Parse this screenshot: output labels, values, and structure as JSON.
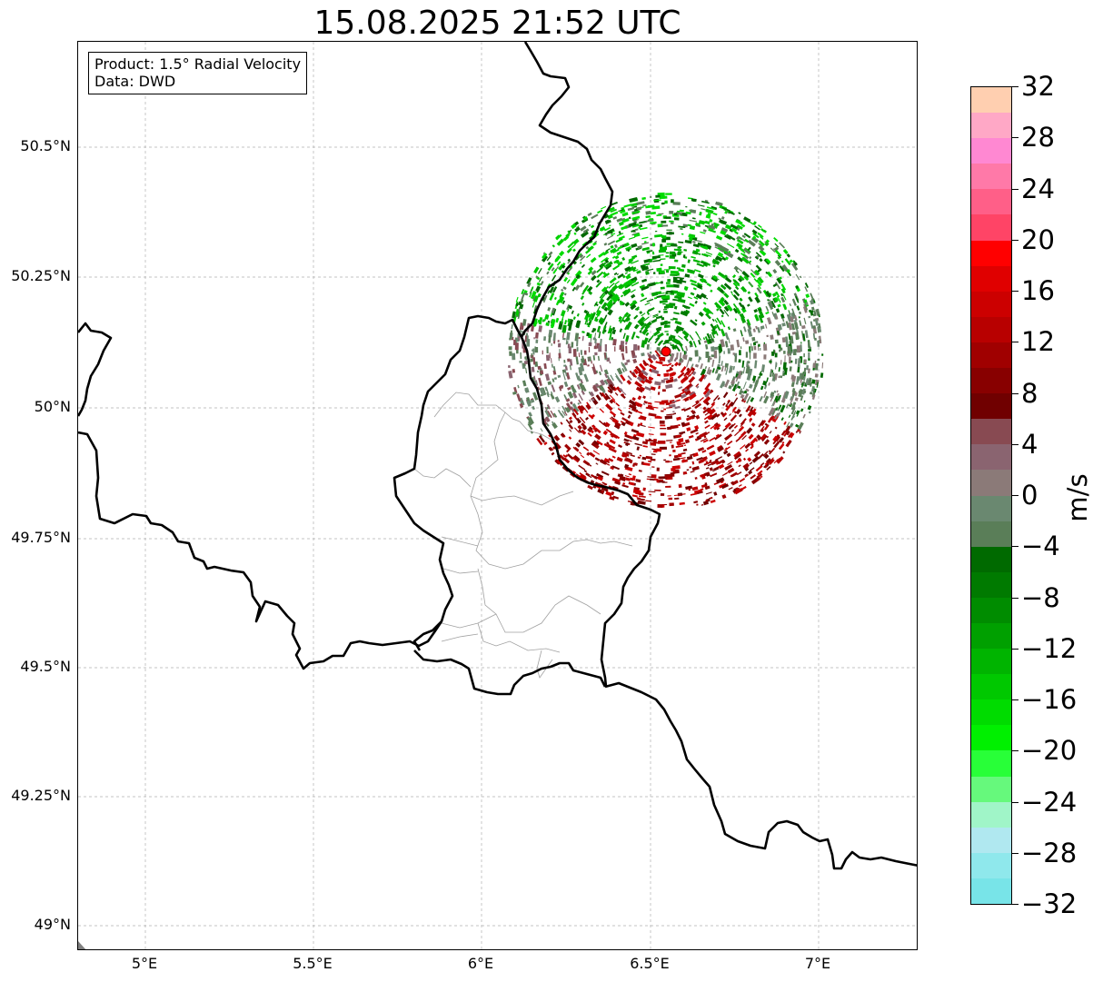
{
  "title": "15.08.2025 21:52 UTC",
  "info": {
    "product": "Product: 1.5° Radial Velocity",
    "data": "Data: DWD"
  },
  "axes": {
    "lat_ticks": [
      "50.5°N",
      "50.25°N",
      "50°N",
      "49.75°N",
      "49.5°N",
      "49.25°N",
      "49°N"
    ],
    "lon_ticks": [
      "5°E",
      "5.5°E",
      "6°E",
      "6.5°E",
      "7°E"
    ],
    "lon_range": [
      4.8,
      7.3
    ],
    "lat_range": [
      48.95,
      50.7
    ],
    "grid": true
  },
  "radar": {
    "site_lon": 6.55,
    "site_lat": 50.11,
    "site_color": "#ff0000"
  },
  "colorbar": {
    "unit": "m/s",
    "range": [
      -32,
      32
    ],
    "tick_labels": [
      "32",
      "28",
      "24",
      "20",
      "16",
      "12",
      "8",
      "4",
      "0",
      "−4",
      "−8",
      "−12",
      "−16",
      "−20",
      "−24",
      "−28",
      "−32"
    ],
    "colors_top_to_bottom": [
      "#ffcfb0",
      "#ffa8c6",
      "#ff88d2",
      "#ff79a8",
      "#ff5f88",
      "#ff4466",
      "#ff0000",
      "#e00000",
      "#cc0000",
      "#b80000",
      "#a00000",
      "#880000",
      "#700000",
      "#884a52",
      "#8a6470",
      "#8b7a78",
      "#6a8870",
      "#5a7e58",
      "#006a00",
      "#007a00",
      "#008c00",
      "#00a000",
      "#00b400",
      "#00c800",
      "#00dc00",
      "#00f000",
      "#28ff38",
      "#66f97c",
      "#a0f5c8",
      "#b0e8f0",
      "#8fe8ec",
      "#78e4e8"
    ]
  }
}
